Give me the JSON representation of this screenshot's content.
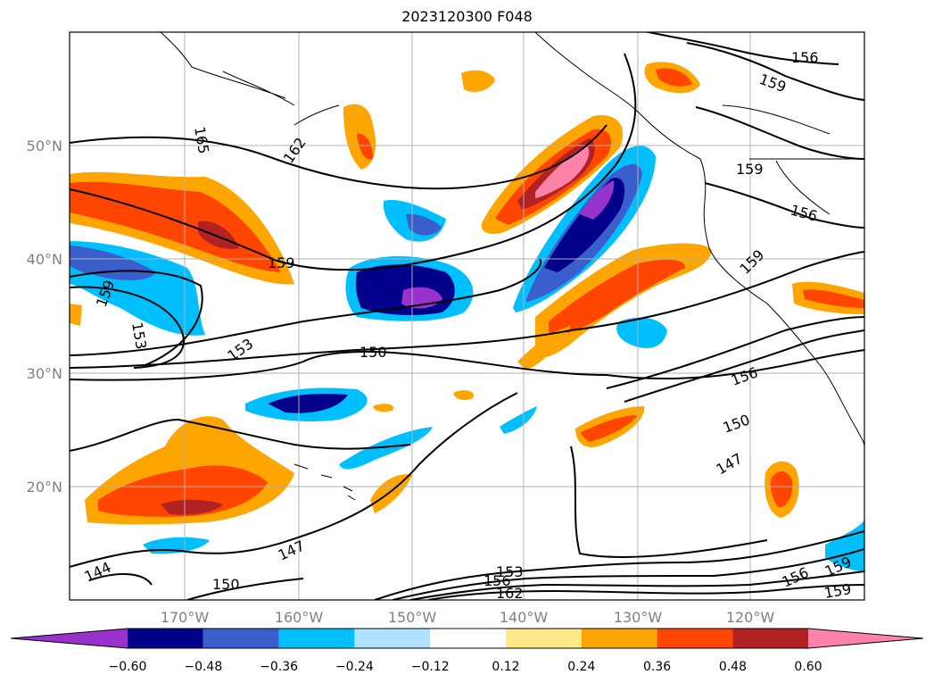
{
  "title": "2023120300 F048",
  "lon_labels": [
    "170°W",
    "160°W",
    "150°W",
    "140°W",
    "130°W",
    "120°W"
  ],
  "lat_labels": [
    "50°N",
    "40°N",
    "30°N",
    "20°N"
  ],
  "colorbar": {
    "ticks": [
      "−0.60",
      "−0.48",
      "−0.36",
      "−0.24",
      "−0.12",
      "0.12",
      "0.24",
      "0.36",
      "0.48",
      "0.60"
    ],
    "colors": [
      "#9932cc",
      "#00008b",
      "#3a5fcd",
      "#00bfff",
      "#b0e2ff",
      "#ffffff",
      "#ffe98a",
      "#ffa500",
      "#ff4500",
      "#b22222",
      "#ff82ab"
    ]
  },
  "contour_labels": [
    "156",
    "159",
    "165",
    "162",
    "159",
    "159",
    "159",
    "153",
    "150",
    "153",
    "156",
    "156",
    "159",
    "150",
    "147",
    "147",
    "144",
    "150",
    "153",
    "156",
    "162",
    "156",
    "159",
    "159"
  ],
  "colors": {
    "grid": "#b0b0b0",
    "coast": "#000000",
    "frame": "#000000"
  }
}
